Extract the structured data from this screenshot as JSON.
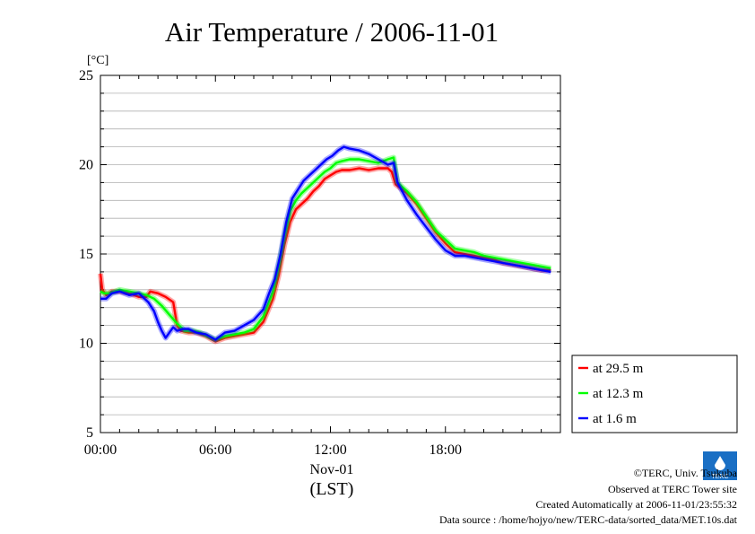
{
  "chart_data": {
    "type": "line",
    "title": "Air Temperature / 2006-11-01",
    "y_unit": "[°C]",
    "ylim": [
      5,
      25
    ],
    "y_ticks": [
      "5",
      "10",
      "15",
      "20",
      "25"
    ],
    "xlim": [
      0,
      24
    ],
    "x_ticks": [
      "00:00",
      "06:00",
      "12:00",
      "18:00"
    ],
    "x_date_label": "Nov-01",
    "x_zone_label": "(LST)",
    "grid": true,
    "legend_position": "right",
    "series": [
      {
        "name": "at 29.5 m",
        "color": "#ff0000",
        "x": [
          0,
          0.1,
          0.3,
          0.6,
          1,
          1.5,
          2,
          2.4,
          2.6,
          3,
          3.4,
          3.8,
          4,
          4.2,
          4.6,
          5,
          5.5,
          6,
          6.5,
          7,
          7.5,
          8,
          8.5,
          9,
          9.3,
          9.6,
          9.9,
          10.2,
          10.5,
          10.8,
          11.1,
          11.4,
          11.7,
          12,
          12.3,
          12.6,
          13,
          13.5,
          14,
          14.5,
          15,
          15.2,
          15.4,
          16,
          16.5,
          17,
          17.5,
          18,
          18.5,
          19,
          19.5,
          20,
          20.5,
          21,
          21.5,
          22,
          22.5,
          23,
          23.5
        ],
        "values": [
          13.9,
          13.0,
          12.7,
          12.9,
          12.9,
          12.8,
          12.6,
          12.6,
          12.9,
          12.8,
          12.6,
          12.3,
          11.0,
          10.7,
          10.6,
          10.6,
          10.4,
          10.1,
          10.3,
          10.4,
          10.5,
          10.6,
          11.2,
          12.5,
          13.8,
          15.5,
          16.8,
          17.5,
          17.8,
          18.1,
          18.5,
          18.8,
          19.2,
          19.4,
          19.6,
          19.7,
          19.7,
          19.8,
          19.7,
          19.8,
          19.8,
          19.6,
          18.9,
          18.4,
          17.8,
          17.0,
          16.2,
          15.6,
          15.1,
          15.0,
          14.9,
          14.8,
          14.7,
          14.5,
          14.4,
          14.3,
          14.2,
          14.1,
          14.1
        ]
      },
      {
        "name": "at 12.3 m",
        "color": "#00ff00",
        "x": [
          0,
          0.2,
          0.5,
          1,
          1.5,
          2,
          2.4,
          2.8,
          3.2,
          3.6,
          4,
          4.4,
          4.8,
          5.2,
          5.6,
          6,
          6.5,
          7,
          7.5,
          8,
          8.5,
          9,
          9.3,
          9.6,
          9.9,
          10.2,
          10.5,
          10.8,
          11.1,
          11.4,
          11.7,
          12,
          12.3,
          12.6,
          13,
          13.5,
          14,
          14.5,
          15,
          15.3,
          15.5,
          16,
          16.5,
          17,
          17.5,
          18,
          18.5,
          19,
          19.5,
          20,
          20.5,
          21,
          21.5,
          22,
          22.5,
          23,
          23.5
        ],
        "values": [
          12.9,
          12.8,
          12.8,
          13.0,
          12.9,
          12.8,
          12.7,
          12.5,
          12.1,
          11.6,
          11.1,
          10.7,
          10.7,
          10.6,
          10.4,
          10.2,
          10.4,
          10.5,
          10.6,
          10.8,
          11.5,
          12.9,
          14.3,
          16.0,
          17.4,
          18.0,
          18.4,
          18.7,
          19.0,
          19.3,
          19.6,
          19.8,
          20.1,
          20.2,
          20.3,
          20.3,
          20.2,
          20.1,
          20.3,
          20.4,
          19.0,
          18.5,
          17.9,
          17.1,
          16.3,
          15.8,
          15.3,
          15.2,
          15.1,
          14.9,
          14.8,
          14.7,
          14.6,
          14.5,
          14.4,
          14.3,
          14.2
        ]
      },
      {
        "name": "at 1.6 m",
        "color": "#0000ff",
        "x": [
          0,
          0.3,
          0.6,
          1,
          1.5,
          2,
          2.5,
          2.8,
          3,
          3.2,
          3.4,
          3.6,
          3.8,
          4,
          4.3,
          4.6,
          5,
          5.5,
          6,
          6.5,
          7,
          7.5,
          8,
          8.5,
          8.8,
          9.1,
          9.4,
          9.7,
          10,
          10.3,
          10.6,
          10.9,
          11.2,
          11.5,
          11.8,
          12.1,
          12.4,
          12.7,
          13,
          13.5,
          14,
          14.5,
          15,
          15.3,
          15.5,
          16,
          16.5,
          17,
          17.5,
          18,
          18.5,
          19,
          19.5,
          20,
          20.5,
          21,
          21.5,
          22,
          22.5,
          23,
          23.5
        ],
        "values": [
          12.5,
          12.5,
          12.8,
          12.9,
          12.7,
          12.8,
          12.3,
          11.8,
          11.2,
          10.7,
          10.3,
          10.6,
          10.9,
          10.7,
          10.8,
          10.8,
          10.6,
          10.5,
          10.2,
          10.6,
          10.7,
          11.0,
          11.3,
          11.9,
          12.8,
          13.6,
          15.0,
          16.8,
          18.1,
          18.6,
          19.1,
          19.4,
          19.7,
          20.0,
          20.3,
          20.5,
          20.8,
          21.0,
          20.9,
          20.8,
          20.6,
          20.3,
          20.0,
          20.1,
          19.0,
          18.0,
          17.2,
          16.5,
          15.8,
          15.2,
          14.9,
          14.9,
          14.8,
          14.7,
          14.6,
          14.5,
          14.4,
          14.3,
          14.2,
          14.1,
          14.0
        ]
      }
    ]
  },
  "credits": {
    "copyright": "©TERC, Univ. Tsukuba",
    "observed": "Observed at TERC Tower site",
    "created": "Created Automatically at 2006-11-01/23:55:32",
    "source": "Data source : /home/hojyo/new/TERC-data/sorted_data/MET.10s.dat",
    "logo_text": "TERC",
    "logo_color": "#1a6fc4"
  }
}
